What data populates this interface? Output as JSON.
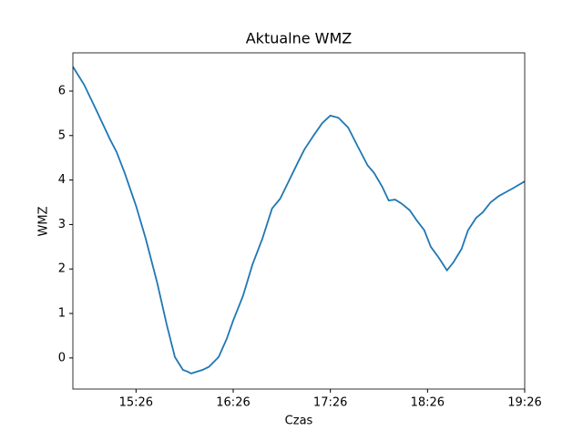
{
  "chart_data": {
    "type": "line",
    "title": "Aktualne WMZ",
    "xlabel": "Czas",
    "ylabel": "WMZ",
    "x": [
      "14:47",
      "14:54",
      "15:02",
      "15:10",
      "15:14",
      "15:19",
      "15:26",
      "15:32",
      "15:39",
      "15:45",
      "15:50",
      "15:55",
      "15:58",
      "16:00",
      "16:07",
      "16:11",
      "16:17",
      "16:22",
      "16:26",
      "16:32",
      "16:38",
      "16:44",
      "16:50",
      "16:55",
      "17:00",
      "17:06",
      "17:10",
      "17:16",
      "17:21",
      "17:26",
      "17:31",
      "17:37",
      "17:43",
      "17:49",
      "17:53",
      "17:58",
      "18:02",
      "18:06",
      "18:10",
      "18:15",
      "18:19",
      "18:24",
      "18:28",
      "18:33",
      "18:38",
      "18:42",
      "18:47",
      "18:51",
      "18:56",
      "19:00",
      "19:05",
      "19:10",
      "19:14",
      "19:19",
      "19:26"
    ],
    "series": [
      {
        "name": "WMZ",
        "color": "#1f77b4",
        "values": [
          6.55,
          6.14,
          5.53,
          4.91,
          4.63,
          4.16,
          3.42,
          2.68,
          1.7,
          0.74,
          0.02,
          -0.27,
          -0.31,
          -0.35,
          -0.27,
          -0.2,
          0.02,
          0.43,
          0.84,
          1.39,
          2.11,
          2.68,
          3.36,
          3.58,
          3.95,
          4.4,
          4.69,
          5.02,
          5.28,
          5.45,
          5.4,
          5.18,
          4.75,
          4.33,
          4.16,
          3.85,
          3.54,
          3.56,
          3.47,
          3.32,
          3.11,
          2.87,
          2.5,
          2.25,
          1.97,
          2.15,
          2.45,
          2.87,
          3.15,
          3.27,
          3.5,
          3.64,
          3.72,
          3.82,
          3.97
        ]
      }
    ],
    "xlim": [
      "14:47",
      "19:26"
    ],
    "xticks": [
      "15:26",
      "16:26",
      "17:26",
      "18:26",
      "19:26"
    ],
    "ylim": [
      -0.7,
      6.86
    ],
    "yticks": [
      0,
      1,
      2,
      3,
      4,
      5,
      6
    ]
  }
}
